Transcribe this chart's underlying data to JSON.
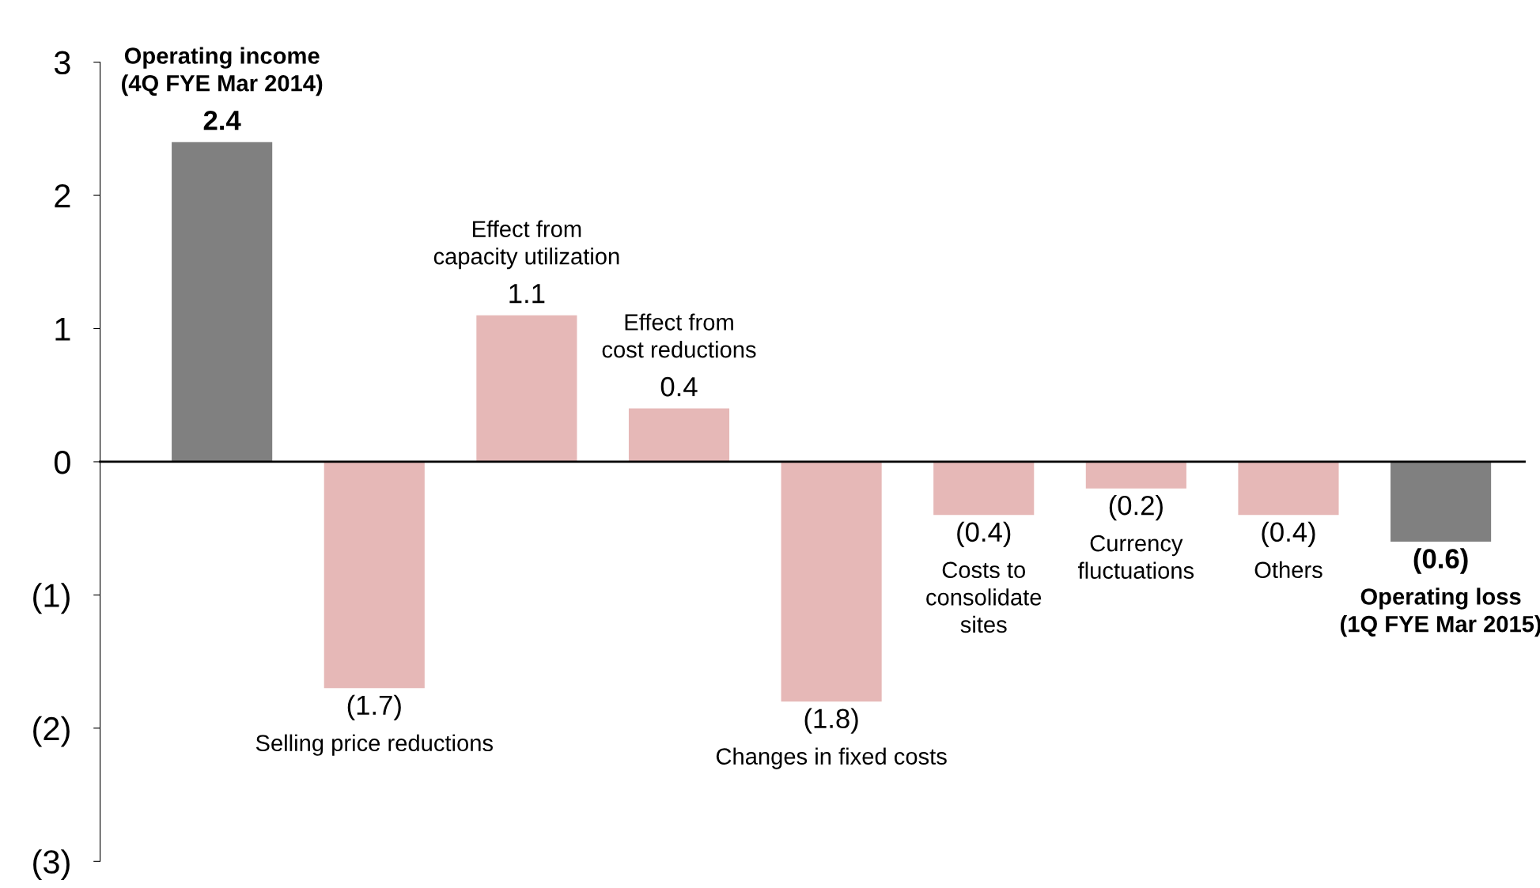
{
  "chart_data": {
    "type": "bar",
    "categories": [
      "Operating income\n(4Q FYE Mar 2014)",
      "Selling price reductions",
      "Effect from\ncapacity utilization",
      "Effect from\ncost reductions",
      "Changes in fixed costs",
      "Costs to\nconsolidate\nsites",
      "Currency\nfluctuations",
      "Others",
      "Operating loss\n(1Q FYE Mar 2015)"
    ],
    "values": [
      2.4,
      -1.7,
      1.1,
      0.4,
      -1.8,
      -0.4,
      -0.2,
      -0.4,
      -0.6
    ],
    "colors": [
      "#808080",
      "#e6b8b7",
      "#e6b8b7",
      "#e6b8b7",
      "#e6b8b7",
      "#e6b8b7",
      "#e6b8b7",
      "#e6b8b7",
      "#808080"
    ],
    "value_labels": [
      "2.4",
      "(1.7)",
      "1.1",
      "0.4",
      "(1.8)",
      "(0.4)",
      "(0.2)",
      "(0.4)",
      "(0.6)"
    ],
    "ylim": [
      -3,
      3
    ],
    "yticks": [
      {
        "value": -3,
        "label": "(3)"
      },
      {
        "value": -2,
        "label": "(2)"
      },
      {
        "value": -1,
        "label": "(1)"
      },
      0,
      1,
      2,
      3
    ],
    "legend": false
  }
}
